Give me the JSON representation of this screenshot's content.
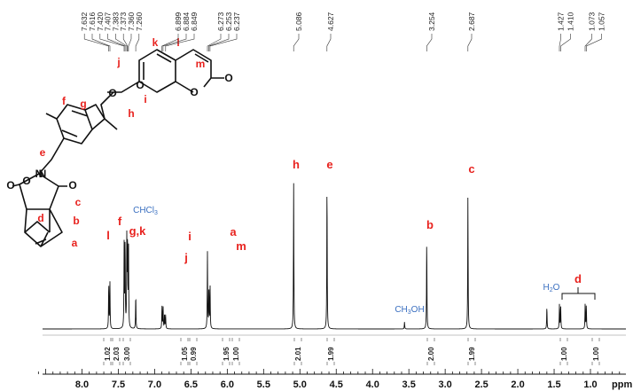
{
  "chart_data": {
    "type": "line",
    "title": "",
    "xlabel": "ppm",
    "ylabel": "",
    "xlim": [
      8.7,
      0.6
    ],
    "x_reversed": true,
    "x_ticks": [
      "8.0",
      "7.5",
      "7.0",
      "6.5",
      "6.0",
      "5.5",
      "5.0",
      "4.5",
      "4.0",
      "3.5",
      "3.0",
      "2.5",
      "2.0",
      "1.5",
      "1.0"
    ],
    "peak_labels": [
      {
        "label": "7.632"
      },
      {
        "label": "7.616"
      },
      {
        "label": "7.420"
      },
      {
        "label": "7.407"
      },
      {
        "label": "7.383"
      },
      {
        "label": "7.373"
      },
      {
        "label": "7.360"
      },
      {
        "label": "7.260"
      },
      {
        "label": "6.899"
      },
      {
        "label": "6.884"
      },
      {
        "label": "6.849"
      },
      {
        "label": "6.273"
      },
      {
        "label": "6.253"
      },
      {
        "label": "6.237"
      },
      {
        "label": "5.086"
      },
      {
        "label": "4.627"
      },
      {
        "label": "3.254"
      },
      {
        "label": "2.687"
      },
      {
        "label": "1.427"
      },
      {
        "label": "1.410"
      },
      {
        "label": "1.073"
      },
      {
        "label": "1.057"
      }
    ],
    "peaks": [
      {
        "ppm": 7.632,
        "height": 0.27
      },
      {
        "ppm": 7.616,
        "height": 0.27
      },
      {
        "ppm": 7.42,
        "height": 0.48
      },
      {
        "ppm": 7.407,
        "height": 0.5
      },
      {
        "ppm": 7.383,
        "height": 0.52
      },
      {
        "ppm": 7.373,
        "height": 0.51
      },
      {
        "ppm": 7.36,
        "height": 0.48
      },
      {
        "ppm": 7.26,
        "height": 0.2
      },
      {
        "ppm": 6.899,
        "height": 0.13
      },
      {
        "ppm": 6.884,
        "height": 0.13
      },
      {
        "ppm": 6.864,
        "height": 0.08
      },
      {
        "ppm": 6.849,
        "height": 0.08
      },
      {
        "ppm": 6.273,
        "height": 0.44
      },
      {
        "ppm": 6.253,
        "height": 0.25
      },
      {
        "ppm": 6.237,
        "height": 0.25
      },
      {
        "ppm": 5.086,
        "height": 0.84
      },
      {
        "ppm": 4.627,
        "height": 0.86
      },
      {
        "ppm": 3.56,
        "height": 0.04
      },
      {
        "ppm": 3.254,
        "height": 0.52
      },
      {
        "ppm": 2.687,
        "height": 0.77
      },
      {
        "ppm": 1.6,
        "height": 0.13
      },
      {
        "ppm": 1.427,
        "height": 0.14
      },
      {
        "ppm": 1.41,
        "height": 0.14
      },
      {
        "ppm": 1.073,
        "height": 0.14
      },
      {
        "ppm": 1.057,
        "height": 0.14
      }
    ],
    "assignments": [
      {
        "label": "l",
        "ppm": 7.62
      },
      {
        "label": "f",
        "ppm": 7.43
      },
      {
        "label": "g,k",
        "ppm": 7.28
      },
      {
        "label": "i",
        "ppm": 6.89
      },
      {
        "label": "j",
        "ppm": 6.91
      },
      {
        "label": "a",
        "ppm": 6.273
      },
      {
        "label": "m",
        "ppm": 6.21
      },
      {
        "label": "h",
        "ppm": 5.086
      },
      {
        "label": "e",
        "ppm": 4.627
      },
      {
        "label": "b",
        "ppm": 3.254
      },
      {
        "label": "c",
        "ppm": 2.687
      },
      {
        "label": "d",
        "ppm": 1.24
      }
    ],
    "solvents": [
      {
        "label": "CHCl3",
        "ppm": 7.26
      },
      {
        "label": "CH3OH",
        "ppm": 3.56
      },
      {
        "label": "H2O",
        "ppm": 1.6
      }
    ],
    "integrals": [
      {
        "value": "1.02",
        "ppm": 7.62
      },
      {
        "value": "2.03",
        "ppm": 7.5
      },
      {
        "value": "3.00",
        "ppm": 7.37
      },
      {
        "value": "1.05",
        "ppm": 6.9
      },
      {
        "value": "0.99",
        "ppm": 6.83
      },
      {
        "value": "1.95",
        "ppm": 6.28
      },
      {
        "value": "1.00",
        "ppm": 6.22
      },
      {
        "value": "2.01",
        "ppm": 5.086
      },
      {
        "value": "1.99",
        "ppm": 4.627
      },
      {
        "value": "2.00",
        "ppm": 3.254
      },
      {
        "value": "1.99",
        "ppm": 2.687
      },
      {
        "value": "1.00",
        "ppm": 1.42
      },
      {
        "value": "1.00",
        "ppm": 1.065
      }
    ],
    "structure_labels": [
      "j",
      "k",
      "l",
      "m",
      "i",
      "h",
      "g",
      "f",
      "e",
      "d",
      "c",
      "b",
      "a"
    ],
    "structure_atoms": [
      "O",
      "O",
      "O",
      "O",
      "N",
      "O"
    ],
    "colors": {
      "assignment": "#e8231f",
      "solvent": "#3a6fc0",
      "line": "#111111"
    }
  }
}
